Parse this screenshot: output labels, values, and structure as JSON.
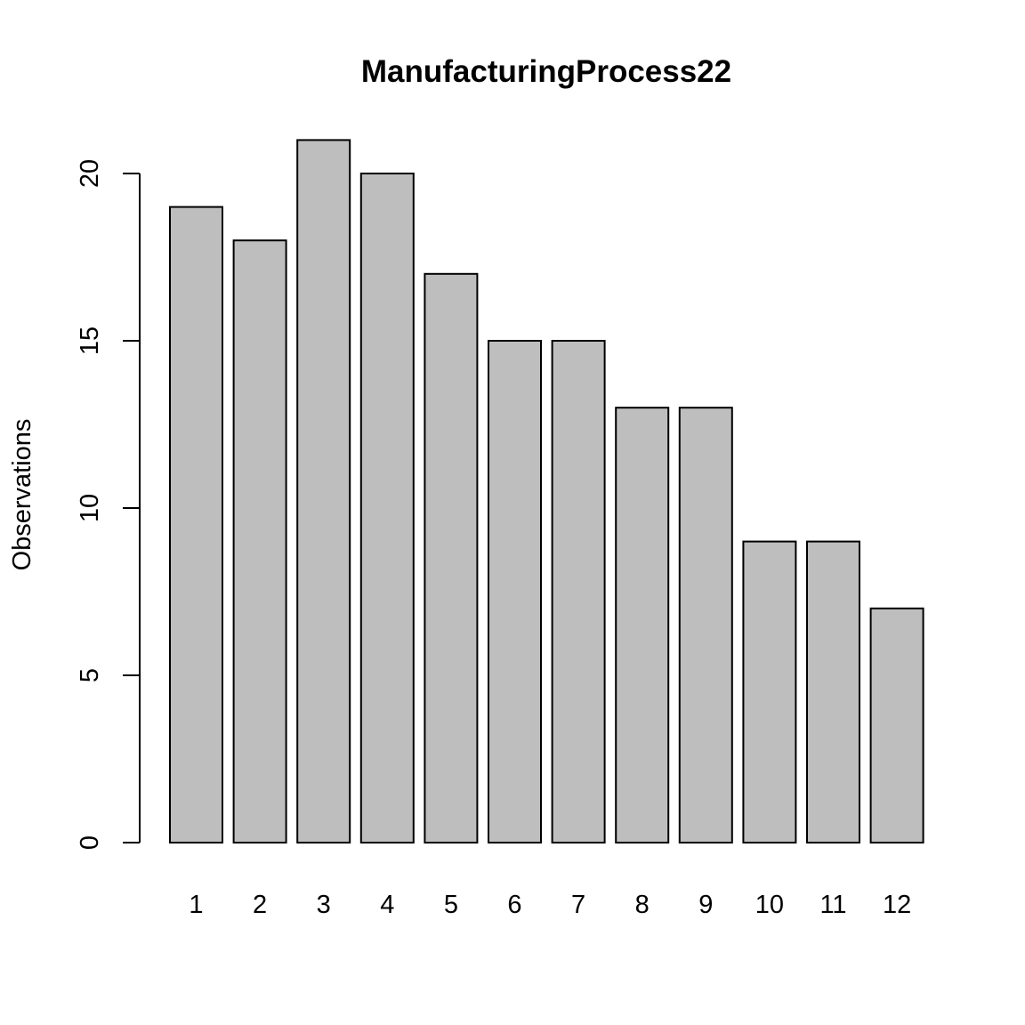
{
  "chart_data": {
    "type": "bar",
    "title": "ManufacturingProcess22",
    "xlabel": "",
    "ylabel": "Observations",
    "categories": [
      "1",
      "2",
      "3",
      "4",
      "5",
      "6",
      "7",
      "8",
      "9",
      "10",
      "11",
      "12"
    ],
    "values": [
      19,
      18,
      21,
      20,
      17,
      15,
      15,
      13,
      13,
      9,
      9,
      7
    ],
    "ylim": [
      0,
      21
    ],
    "yticks": [
      0,
      5,
      10,
      15,
      20
    ],
    "grid": false,
    "bar_color": "#bebebe",
    "bar_border_color": "#000000"
  }
}
